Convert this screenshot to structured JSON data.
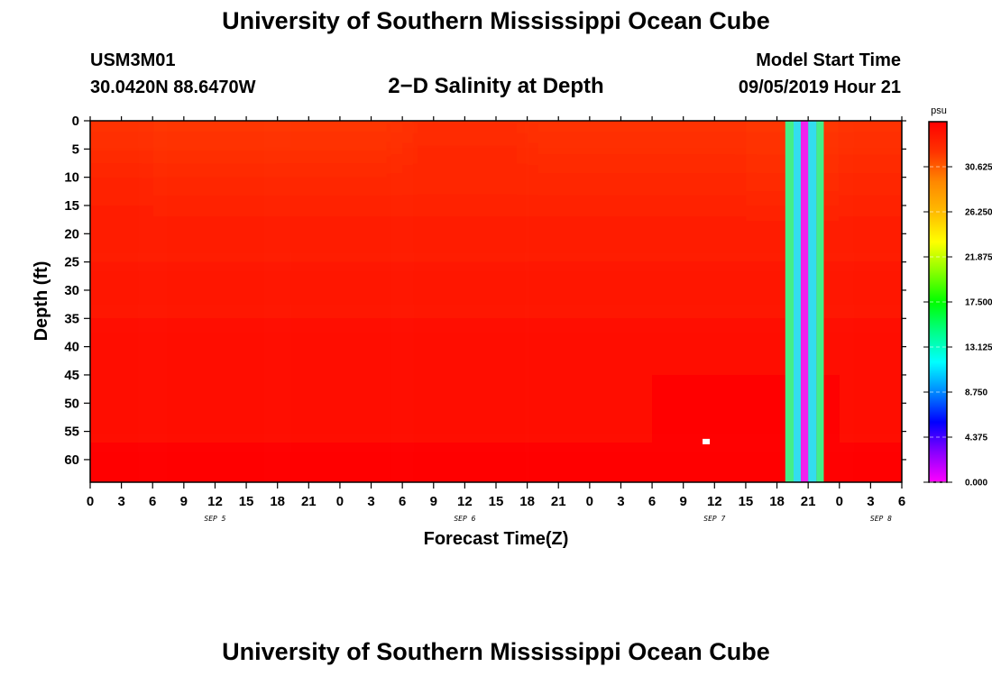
{
  "header": {
    "title": "University of Southern Mississippi Ocean Cube",
    "station_id": "USM3M01",
    "station_coords": "30.0420N 88.6470W",
    "plot_title": "2−D Salinity at Depth",
    "start_label": "Model Start Time",
    "start_value": "09/05/2019 Hour 21"
  },
  "footer": {
    "title": "University of Southern Mississippi Ocean Cube"
  },
  "chart_data": {
    "type": "heatmap",
    "title": "2−D Salinity at Depth",
    "xlabel": "Forecast Time(Z)",
    "ylabel": "Depth (ft)",
    "x_unit": "forecast hours",
    "xlim": [
      0,
      78
    ],
    "ylim": [
      0,
      64
    ],
    "y_inverted": true,
    "x_ticks": [
      0,
      3,
      6,
      9,
      12,
      15,
      18,
      21,
      24,
      27,
      30,
      33,
      36,
      39,
      42,
      45,
      48,
      51,
      54,
      57,
      60,
      63,
      66,
      69,
      72,
      75,
      78
    ],
    "x_tick_labels": [
      "0",
      "3",
      "6",
      "9",
      "12",
      "15",
      "18",
      "21",
      "0",
      "3",
      "6",
      "9",
      "12",
      "15",
      "18",
      "21",
      "0",
      "3",
      "6",
      "9",
      "12",
      "15",
      "18",
      "21",
      "0",
      "3",
      "6"
    ],
    "y_ticks": [
      0,
      5,
      10,
      15,
      20,
      25,
      30,
      35,
      40,
      45,
      50,
      55,
      60
    ],
    "date_labels": [
      {
        "x": 12,
        "text": "SEP 5"
      },
      {
        "x": 36,
        "text": "SEP 6"
      },
      {
        "x": 60,
        "text": "SEP 7"
      },
      {
        "x": 76,
        "text": "SEP 8"
      }
    ],
    "colorbar": {
      "unit": "psu",
      "min": 0,
      "max": 35,
      "ticks": [
        0,
        4.375,
        8.75,
        13.125,
        17.5,
        21.875,
        26.25,
        30.625
      ],
      "tick_labels": [
        "0.000",
        "4.375",
        "8.750",
        "13.125",
        "17.500",
        "21.875",
        "26.250",
        "30.625"
      ],
      "colors": [
        "#ff00ff",
        "#8800ff",
        "#0000ff",
        "#0088ff",
        "#00ffff",
        "#00ff88",
        "#00ff00",
        "#88ff00",
        "#ffff00",
        "#ffbb00",
        "#ff8800",
        "#ff3300",
        "#ff0000"
      ]
    },
    "salinity_field": {
      "depth_rows": [
        0,
        5,
        10,
        20,
        30,
        40,
        50,
        64
      ],
      "hours": [
        0,
        12,
        24,
        36,
        48,
        60,
        66,
        78
      ],
      "values_psu": [
        [
          32.2,
          32.0,
          32.0,
          32.4,
          32.2,
          32.2,
          32.0,
          32.2
        ],
        [
          32.4,
          32.1,
          32.2,
          32.7,
          32.4,
          32.4,
          32.1,
          32.3
        ],
        [
          33.0,
          32.8,
          32.7,
          32.9,
          32.8,
          32.8,
          32.6,
          32.8
        ],
        [
          33.4,
          33.3,
          33.3,
          33.4,
          33.4,
          33.4,
          33.4,
          33.4
        ],
        [
          33.7,
          33.7,
          33.7,
          33.7,
          33.8,
          33.8,
          33.8,
          33.8
        ],
        [
          34.0,
          34.0,
          34.0,
          34.1,
          34.2,
          34.2,
          34.2,
          34.1
        ],
        [
          34.4,
          34.4,
          34.4,
          34.5,
          34.6,
          34.7,
          34.7,
          34.5
        ],
        [
          34.8,
          34.8,
          34.8,
          34.8,
          34.9,
          35.0,
          35.0,
          34.9
        ]
      ]
    },
    "anomaly_columns": [
      {
        "x0": 66.8,
        "x1": 67.6,
        "color": "#44ee88"
      },
      {
        "x0": 67.6,
        "x1": 68.3,
        "color": "#33ddee"
      },
      {
        "x0": 68.3,
        "x1": 69.0,
        "color": "#ee22ee"
      },
      {
        "x0": 69.0,
        "x1": 69.8,
        "color": "#33ddee"
      },
      {
        "x0": 69.8,
        "x1": 70.5,
        "color": "#44ee88"
      }
    ],
    "marker": {
      "x": 59.2,
      "y": 56.8,
      "color": "#ffffff"
    }
  }
}
